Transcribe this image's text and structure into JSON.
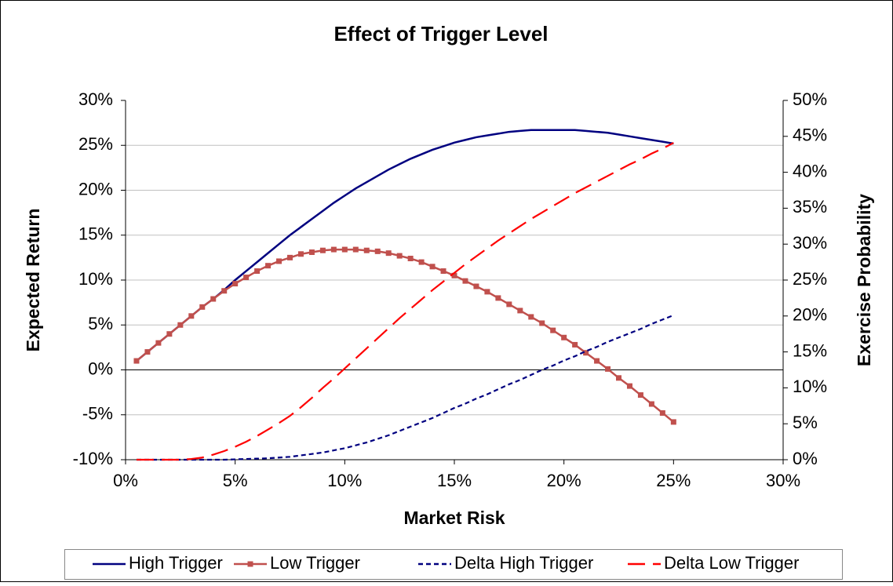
{
  "chart_data": {
    "type": "line",
    "title": "Effect of Trigger Level",
    "x_label": "Market Risk",
    "y_label": "Expected Return",
    "y2_label": "Exercise Probability",
    "x": [
      0.5,
      1,
      1.5,
      2,
      2.5,
      3,
      3.5,
      4,
      4.5,
      5,
      5.5,
      6,
      6.5,
      7,
      7.5,
      8,
      8.5,
      9,
      9.5,
      10,
      10.5,
      11,
      11.5,
      12,
      12.5,
      13,
      13.5,
      14,
      14.5,
      15,
      15.5,
      16,
      16.5,
      17,
      17.5,
      18,
      18.5,
      19,
      19.5,
      20,
      20.5,
      21,
      21.5,
      22,
      22.5,
      23,
      23.5,
      24,
      24.5,
      25
    ],
    "series": [
      {
        "name": "High Trigger",
        "color": "#000080",
        "dash": "solid",
        "marker": "none",
        "axis": "y",
        "values": [
          1.0,
          2.0,
          3.0,
          4.0,
          5.0,
          6.0,
          7.0,
          7.9,
          8.9,
          10.0,
          11.0,
          12.0,
          13.0,
          14.0,
          15.0,
          15.9,
          16.8,
          17.7,
          18.6,
          19.4,
          20.2,
          20.9,
          21.6,
          22.3,
          22.9,
          23.5,
          24.0,
          24.5,
          24.9,
          25.3,
          25.6,
          25.9,
          26.1,
          26.3,
          26.5,
          26.6,
          26.7,
          26.7,
          26.7,
          26.7,
          26.7,
          26.6,
          26.5,
          26.4,
          26.2,
          26.0,
          25.8,
          25.6,
          25.4,
          25.2
        ]
      },
      {
        "name": "Low Trigger",
        "color": "#c0504d",
        "dash": "solid",
        "marker": "square",
        "axis": "y",
        "values": [
          1.0,
          2.0,
          3.0,
          4.0,
          5.0,
          6.0,
          7.0,
          7.9,
          8.8,
          9.6,
          10.3,
          11.0,
          11.6,
          12.1,
          12.5,
          12.9,
          13.1,
          13.3,
          13.4,
          13.4,
          13.4,
          13.3,
          13.2,
          13.0,
          12.7,
          12.4,
          12.0,
          11.5,
          11.0,
          10.5,
          9.9,
          9.3,
          8.7,
          8.0,
          7.3,
          6.6,
          5.9,
          5.2,
          4.4,
          3.6,
          2.8,
          1.9,
          1.0,
          0.1,
          -0.9,
          -1.8,
          -2.8,
          -3.8,
          -4.8,
          -5.8
        ]
      },
      {
        "name": "Delta High Trigger",
        "color": "#000080",
        "dash": "short",
        "marker": "none",
        "axis": "y2",
        "values": [
          0,
          0,
          0,
          0,
          0,
          0,
          0,
          0,
          0,
          0.05,
          0.1,
          0.15,
          0.2,
          0.3,
          0.4,
          0.6,
          0.8,
          1.0,
          1.3,
          1.6,
          2.0,
          2.4,
          2.9,
          3.4,
          4.0,
          4.6,
          5.2,
          5.8,
          6.5,
          7.2,
          7.8,
          8.5,
          9.1,
          9.8,
          10.5,
          11.1,
          11.8,
          12.5,
          13.1,
          13.8,
          14.4,
          15.1,
          15.7,
          16.4,
          17.0,
          17.6,
          18.2,
          18.9,
          19.5,
          20.1
        ]
      },
      {
        "name": "Delta Low Trigger",
        "color": "#ff0000",
        "dash": "long",
        "marker": "none",
        "axis": "y2",
        "values": [
          0,
          0,
          0,
          0,
          0,
          0.1,
          0.3,
          0.7,
          1.2,
          1.8,
          2.5,
          3.3,
          4.2,
          5.1,
          6.1,
          7.3,
          8.6,
          10.0,
          11.3,
          12.7,
          14.1,
          15.5,
          16.9,
          18.3,
          19.7,
          21.0,
          22.3,
          23.6,
          24.8,
          26.0,
          27.2,
          28.3,
          29.4,
          30.5,
          31.5,
          32.5,
          33.5,
          34.4,
          35.3,
          36.2,
          37.1,
          37.9,
          38.7,
          39.5,
          40.3,
          41.1,
          41.8,
          42.6,
          43.3,
          44.1
        ]
      }
    ],
    "xlim": [
      0,
      30
    ],
    "xticks": [
      {
        "value": 0,
        "label": "0%"
      },
      {
        "value": 5,
        "label": "5%"
      },
      {
        "value": 10,
        "label": "10%"
      },
      {
        "value": 15,
        "label": "15%"
      },
      {
        "value": 20,
        "label": "20%"
      },
      {
        "value": 25,
        "label": "25%"
      },
      {
        "value": 30,
        "label": "30%"
      }
    ],
    "ylim": [
      -10,
      30
    ],
    "yticks": [
      {
        "value": -10,
        "label": "-10%"
      },
      {
        "value": -5,
        "label": "-5%"
      },
      {
        "value": 0,
        "label": "0%"
      },
      {
        "value": 5,
        "label": "5%"
      },
      {
        "value": 10,
        "label": "10%"
      },
      {
        "value": 15,
        "label": "15%"
      },
      {
        "value": 20,
        "label": "20%"
      },
      {
        "value": 25,
        "label": "25%"
      },
      {
        "value": 30,
        "label": "30%"
      }
    ],
    "y2lim": [
      0,
      50
    ],
    "y2ticks": [
      {
        "value": 0,
        "label": "0%"
      },
      {
        "value": 5,
        "label": "5%"
      },
      {
        "value": 10,
        "label": "10%"
      },
      {
        "value": 15,
        "label": "15%"
      },
      {
        "value": 20,
        "label": "20%"
      },
      {
        "value": 25,
        "label": "25%"
      },
      {
        "value": 30,
        "label": "30%"
      },
      {
        "value": 35,
        "label": "35%"
      },
      {
        "value": 40,
        "label": "40%"
      },
      {
        "value": 45,
        "label": "45%"
      },
      {
        "value": 50,
        "label": "50%"
      }
    ],
    "grid": true,
    "legend": "bottom"
  }
}
